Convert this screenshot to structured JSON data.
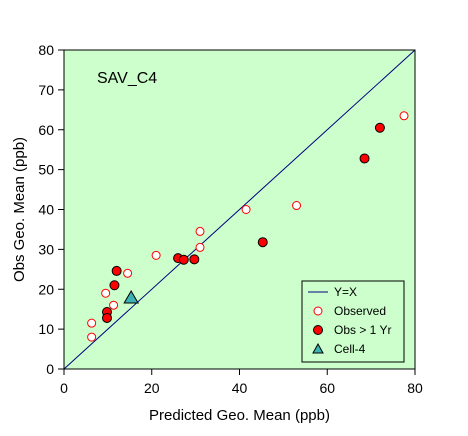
{
  "chart_data": {
    "type": "scatter",
    "title": "",
    "panel_label": "SAV_C4",
    "xlabel": "Predicted Geo. Mean  (ppb)",
    "ylabel": "Obs Geo. Mean  (ppb)",
    "xlim": [
      0,
      80
    ],
    "ylim": [
      0,
      80
    ],
    "x_ticks": [
      0,
      20,
      40,
      60,
      80
    ],
    "y_ticks": [
      0,
      10,
      20,
      30,
      40,
      50,
      60,
      70,
      80
    ],
    "grid": false,
    "legend_position": "bottom-right",
    "plot_background": "#ccffcc",
    "reference_line": {
      "name": "Y=X",
      "color": "#000080",
      "points": [
        [
          0,
          0
        ],
        [
          80,
          80
        ]
      ]
    },
    "series": [
      {
        "name": "Observed",
        "marker": "open-circle",
        "color": "#ff0000",
        "points": [
          [
            6.3,
            11.5
          ],
          [
            6.3,
            8.0
          ],
          [
            9.5,
            19.0
          ],
          [
            11.3,
            16.0
          ],
          [
            14.5,
            24.0
          ],
          [
            21.0,
            28.5
          ],
          [
            31.0,
            34.5
          ],
          [
            31.0,
            30.5
          ],
          [
            41.5,
            40.0
          ],
          [
            53.0,
            41.0
          ],
          [
            77.5,
            63.5
          ]
        ]
      },
      {
        "name": "Obs > 1 Yr",
        "marker": "filled-circle",
        "color": "#ff0000",
        "points": [
          [
            9.8,
            14.3
          ],
          [
            9.8,
            12.8
          ],
          [
            11.5,
            21.0
          ],
          [
            12.0,
            24.6
          ],
          [
            26.0,
            27.8
          ],
          [
            27.3,
            27.4
          ],
          [
            29.7,
            27.5
          ],
          [
            45.3,
            31.8
          ],
          [
            68.5,
            52.8
          ],
          [
            72.0,
            60.5
          ]
        ]
      },
      {
        "name": "Cell-4",
        "marker": "filled-triangle",
        "color": "#3cb3b3",
        "points": [
          [
            15.3,
            17.8
          ]
        ]
      }
    ]
  }
}
